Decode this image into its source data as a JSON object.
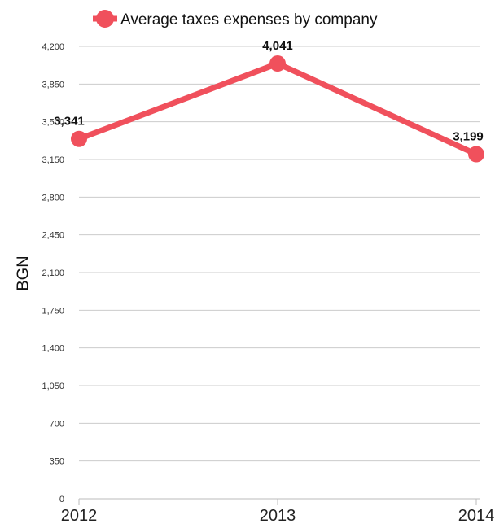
{
  "chart_data": {
    "type": "line",
    "title": "",
    "xlabel": "",
    "ylabel": "BGN",
    "x": [
      "2012",
      "2013",
      "2014"
    ],
    "ylim": [
      0,
      4200
    ],
    "yticks": [
      "0",
      "350",
      "700",
      "1,050",
      "1,400",
      "1,750",
      "2,100",
      "2,450",
      "2,800",
      "3,150",
      "3,500",
      "3,850",
      "4,200"
    ],
    "ytick_values": [
      0,
      350,
      700,
      1050,
      1400,
      1750,
      2100,
      2450,
      2800,
      3150,
      3500,
      3850,
      4200
    ],
    "grid": true,
    "legend_position": "top",
    "series": [
      {
        "name": "Average taxes expenses by company",
        "values": [
          3341,
          4041,
          3199
        ],
        "data_labels": [
          "3,341",
          "4,041",
          "3,199"
        ],
        "color": "#f0505c"
      }
    ]
  }
}
